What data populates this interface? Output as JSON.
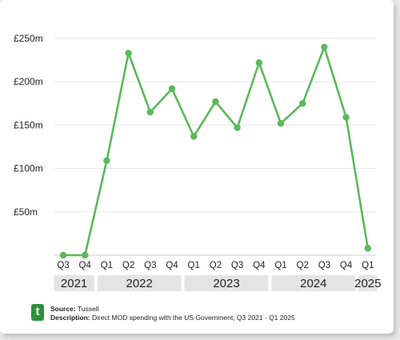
{
  "chart_data": {
    "type": "line",
    "y_unit_prefix": "£",
    "y_unit_suffix": "m",
    "ylim": [
      0,
      262
    ],
    "yticks": [
      "£250m",
      "£200m",
      "£150m",
      "£100m",
      "£50m"
    ],
    "ytick_values": [
      250,
      200,
      150,
      100,
      50
    ],
    "grid": true,
    "line_color": "#5cb85c",
    "categories": [
      "Q3",
      "Q4",
      "Q1",
      "Q2",
      "Q3",
      "Q4",
      "Q1",
      "Q2",
      "Q3",
      "Q4",
      "Q1",
      "Q2",
      "Q3",
      "Q4",
      "Q1"
    ],
    "years": [
      {
        "label": "2021",
        "from": 0,
        "to": 1
      },
      {
        "label": "2022",
        "from": 2,
        "to": 5
      },
      {
        "label": "2023",
        "from": 6,
        "to": 9
      },
      {
        "label": "2024",
        "from": 10,
        "to": 13
      },
      {
        "label": "2025",
        "from": 14,
        "to": 14
      }
    ],
    "series": [
      {
        "values": [
          0,
          0,
          109,
          233,
          165,
          192,
          137,
          177,
          147,
          222,
          152,
          175,
          240,
          159,
          8
        ]
      }
    ]
  },
  "footer": {
    "logo_letter": "t",
    "source_label": "Source:",
    "source_value": "Tussell",
    "description_label": "Description:",
    "description_value": "Direct MOD spending with the US Government, Q3 2021 - Q1 2025"
  }
}
